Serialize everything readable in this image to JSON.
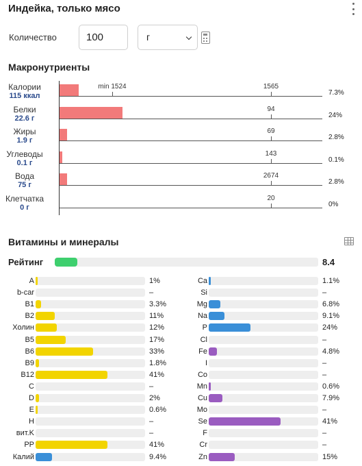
{
  "header": {
    "title": "Индейка, только мясо"
  },
  "quantity": {
    "label": "Количество",
    "value": "100",
    "unit": "г"
  },
  "macros": {
    "title": "Макронутриенты",
    "rows": [
      {
        "name": "Калории",
        "value": "115 ккал",
        "fill_pct": 7.3,
        "pct": "7.3%",
        "mark": "1565",
        "min_label": "min 1524"
      },
      {
        "name": "Белки",
        "value": "22.6 г",
        "fill_pct": 24,
        "pct": "24%",
        "mark": "94"
      },
      {
        "name": "Жиры",
        "value": "1.9 г",
        "fill_pct": 2.8,
        "pct": "2.8%",
        "mark": "69"
      },
      {
        "name": "Углеводы",
        "value": "0.1 г",
        "fill_pct": 0.1,
        "pct": "0.1%",
        "mark": "143"
      },
      {
        "name": "Вода",
        "value": "75 г",
        "fill_pct": 2.8,
        "pct": "2.8%",
        "mark": "2674"
      },
      {
        "name": "Клетчатка",
        "value": "0 г",
        "fill_pct": 0,
        "pct": "0%",
        "mark": "20"
      }
    ]
  },
  "vitamins": {
    "title": "Витамины и минералы",
    "rating_label": "Рейтинг",
    "rating_value": "8.4",
    "colors": {
      "vitamin": "#f2d400",
      "mineral_blue": "#3a8fd8",
      "mineral_purple": "#9a5cc0",
      "rating": "#3ecf6e",
      "macro": "#f27a7a"
    },
    "left": [
      {
        "name": "A",
        "pct": "1%",
        "fill": 1,
        "color": "#f2d400"
      },
      {
        "name": "b-car",
        "pct": "–",
        "fill": 0,
        "color": "#f2d400"
      },
      {
        "name": "B1",
        "pct": "3.3%",
        "fill": 3.3,
        "color": "#f2d400"
      },
      {
        "name": "B2",
        "pct": "11%",
        "fill": 11,
        "color": "#f2d400"
      },
      {
        "name": "Холин",
        "pct": "12%",
        "fill": 12,
        "color": "#f2d400"
      },
      {
        "name": "B5",
        "pct": "17%",
        "fill": 17,
        "color": "#f2d400"
      },
      {
        "name": "B6",
        "pct": "33%",
        "fill": 33,
        "color": "#f2d400"
      },
      {
        "name": "B9",
        "pct": "1.8%",
        "fill": 1.8,
        "color": "#f2d400"
      },
      {
        "name": "B12",
        "pct": "41%",
        "fill": 41,
        "color": "#f2d400"
      },
      {
        "name": "C",
        "pct": "–",
        "fill": 0,
        "color": "#f2d400"
      },
      {
        "name": "D",
        "pct": "2%",
        "fill": 2,
        "color": "#f2d400"
      },
      {
        "name": "E",
        "pct": "0.6%",
        "fill": 0.6,
        "color": "#f2d400"
      },
      {
        "name": "H",
        "pct": "–",
        "fill": 0,
        "color": "#f2d400"
      },
      {
        "name": "вит.K",
        "pct": "–",
        "fill": 0,
        "color": "#f2d400"
      },
      {
        "name": "PP",
        "pct": "41%",
        "fill": 41,
        "color": "#f2d400"
      },
      {
        "name": "Калий",
        "pct": "9.4%",
        "fill": 9.4,
        "color": "#3a8fd8"
      }
    ],
    "right": [
      {
        "name": "Ca",
        "pct": "1.1%",
        "fill": 1.1,
        "color": "#3a8fd8"
      },
      {
        "name": "Si",
        "pct": "–",
        "fill": 0,
        "color": "#3a8fd8"
      },
      {
        "name": "Mg",
        "pct": "6.8%",
        "fill": 6.8,
        "color": "#3a8fd8"
      },
      {
        "name": "Na",
        "pct": "9.1%",
        "fill": 9.1,
        "color": "#3a8fd8"
      },
      {
        "name": "P",
        "pct": "24%",
        "fill": 24,
        "color": "#3a8fd8"
      },
      {
        "name": "Cl",
        "pct": "–",
        "fill": 0,
        "color": "#3a8fd8"
      },
      {
        "name": "Fe",
        "pct": "4.8%",
        "fill": 4.8,
        "color": "#9a5cc0"
      },
      {
        "name": "I",
        "pct": "–",
        "fill": 0,
        "color": "#9a5cc0"
      },
      {
        "name": "Co",
        "pct": "–",
        "fill": 0,
        "color": "#9a5cc0"
      },
      {
        "name": "Mn",
        "pct": "0.6%",
        "fill": 0.6,
        "color": "#9a5cc0"
      },
      {
        "name": "Cu",
        "pct": "7.9%",
        "fill": 7.9,
        "color": "#9a5cc0"
      },
      {
        "name": "Mo",
        "pct": "–",
        "fill": 0,
        "color": "#9a5cc0"
      },
      {
        "name": "Se",
        "pct": "41%",
        "fill": 41,
        "color": "#9a5cc0"
      },
      {
        "name": "F",
        "pct": "–",
        "fill": 0,
        "color": "#9a5cc0"
      },
      {
        "name": "Cr",
        "pct": "–",
        "fill": 0,
        "color": "#9a5cc0"
      },
      {
        "name": "Zn",
        "pct": "15%",
        "fill": 15,
        "color": "#9a5cc0"
      }
    ]
  }
}
